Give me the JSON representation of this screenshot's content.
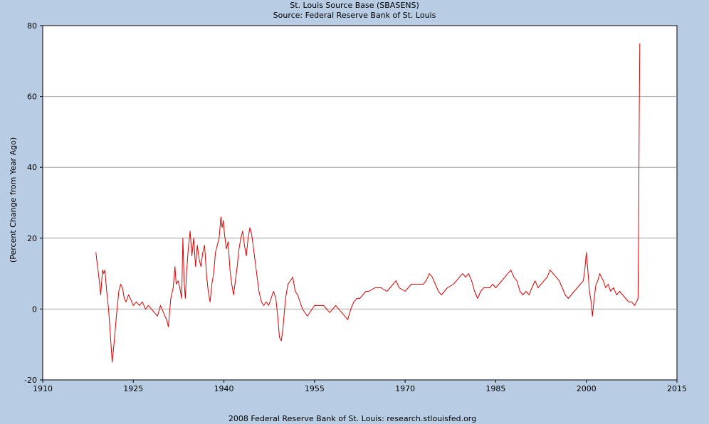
{
  "chart_data": {
    "type": "line",
    "title": "St. Louis Source Base (SBASENS)",
    "subtitle": "Source: Federal Reserve Bank of St. Louis",
    "xlabel": "",
    "ylabel": "(Percent Change from Year Ago)",
    "footer": "2008 Federal Reserve Bank of St. Louis: research.stlouisfed.org",
    "xlim": [
      1910,
      2015
    ],
    "ylim": [
      -20,
      80
    ],
    "x_ticks": [
      1910,
      1925,
      1940,
      1955,
      1970,
      1985,
      2000,
      2015
    ],
    "y_ticks": [
      -20,
      0,
      20,
      40,
      60,
      80
    ],
    "grid": "horizontal",
    "series": [
      {
        "color": "#e00000",
        "points": [
          [
            1918.8,
            16
          ],
          [
            1919.0,
            13
          ],
          [
            1919.3,
            9
          ],
          [
            1919.6,
            4
          ],
          [
            1919.9,
            11
          ],
          [
            1920.1,
            10
          ],
          [
            1920.3,
            11
          ],
          [
            1920.6,
            5
          ],
          [
            1920.9,
            0
          ],
          [
            1921.2,
            -7
          ],
          [
            1921.5,
            -15
          ],
          [
            1921.8,
            -10
          ],
          [
            1922.2,
            -2
          ],
          [
            1922.6,
            5
          ],
          [
            1922.9,
            7
          ],
          [
            1923.2,
            6
          ],
          [
            1923.5,
            3
          ],
          [
            1923.8,
            2
          ],
          [
            1924.2,
            4
          ],
          [
            1924.5,
            3
          ],
          [
            1925.0,
            1
          ],
          [
            1925.5,
            2
          ],
          [
            1926.0,
            1
          ],
          [
            1926.5,
            2
          ],
          [
            1927.0,
            0
          ],
          [
            1927.5,
            1
          ],
          [
            1928.0,
            0
          ],
          [
            1928.5,
            -1
          ],
          [
            1929.0,
            -2
          ],
          [
            1929.5,
            1
          ],
          [
            1930.0,
            -1
          ],
          [
            1930.5,
            -3
          ],
          [
            1930.8,
            -5
          ],
          [
            1931.2,
            3
          ],
          [
            1931.6,
            6
          ],
          [
            1931.9,
            12
          ],
          [
            1932.1,
            7
          ],
          [
            1932.4,
            8
          ],
          [
            1932.7,
            6
          ],
          [
            1933.0,
            3
          ],
          [
            1933.2,
            20
          ],
          [
            1933.4,
            8
          ],
          [
            1933.6,
            3
          ],
          [
            1933.8,
            10
          ],
          [
            1934.1,
            17
          ],
          [
            1934.4,
            22
          ],
          [
            1934.7,
            15
          ],
          [
            1935.0,
            20
          ],
          [
            1935.3,
            12
          ],
          [
            1935.6,
            18
          ],
          [
            1935.9,
            14
          ],
          [
            1936.2,
            12
          ],
          [
            1936.5,
            16
          ],
          [
            1936.8,
            18
          ],
          [
            1937.1,
            10
          ],
          [
            1937.4,
            5
          ],
          [
            1937.7,
            2
          ],
          [
            1938.0,
            7
          ],
          [
            1938.3,
            10
          ],
          [
            1938.6,
            16
          ],
          [
            1938.9,
            18
          ],
          [
            1939.2,
            20
          ],
          [
            1939.5,
            26
          ],
          [
            1939.7,
            23
          ],
          [
            1939.9,
            25
          ],
          [
            1940.1,
            21
          ],
          [
            1940.4,
            17
          ],
          [
            1940.7,
            19
          ],
          [
            1941.0,
            11
          ],
          [
            1941.3,
            7
          ],
          [
            1941.6,
            4
          ],
          [
            1941.9,
            8
          ],
          [
            1942.2,
            12
          ],
          [
            1942.5,
            17
          ],
          [
            1942.8,
            20
          ],
          [
            1943.1,
            22
          ],
          [
            1943.4,
            18
          ],
          [
            1943.7,
            15
          ],
          [
            1944.0,
            20
          ],
          [
            1944.3,
            23
          ],
          [
            1944.6,
            21
          ],
          [
            1944.9,
            17
          ],
          [
            1945.2,
            13
          ],
          [
            1945.5,
            9
          ],
          [
            1945.8,
            5
          ],
          [
            1946.2,
            2
          ],
          [
            1946.6,
            1
          ],
          [
            1947.0,
            2
          ],
          [
            1947.4,
            1
          ],
          [
            1947.8,
            3
          ],
          [
            1948.2,
            5
          ],
          [
            1948.6,
            3
          ],
          [
            1948.9,
            -2
          ],
          [
            1949.2,
            -8
          ],
          [
            1949.5,
            -9
          ],
          [
            1949.8,
            -5
          ],
          [
            1950.2,
            3
          ],
          [
            1950.6,
            7
          ],
          [
            1951.0,
            8
          ],
          [
            1951.4,
            9
          ],
          [
            1951.8,
            5
          ],
          [
            1952.2,
            4
          ],
          [
            1952.6,
            2
          ],
          [
            1953.0,
            0
          ],
          [
            1953.4,
            -1
          ],
          [
            1953.8,
            -2
          ],
          [
            1954.2,
            -1
          ],
          [
            1954.6,
            0
          ],
          [
            1955.0,
            1
          ],
          [
            1955.5,
            1
          ],
          [
            1956.0,
            1
          ],
          [
            1956.5,
            1
          ],
          [
            1957.0,
            0
          ],
          [
            1957.5,
            -1
          ],
          [
            1958.0,
            0
          ],
          [
            1958.5,
            1
          ],
          [
            1959.0,
            0
          ],
          [
            1959.5,
            -1
          ],
          [
            1960.0,
            -2
          ],
          [
            1960.5,
            -3
          ],
          [
            1961.0,
            0
          ],
          [
            1961.5,
            2
          ],
          [
            1962.0,
            3
          ],
          [
            1962.5,
            3
          ],
          [
            1963.0,
            4
          ],
          [
            1963.5,
            5
          ],
          [
            1964.0,
            5
          ],
          [
            1965.0,
            6
          ],
          [
            1966.0,
            6
          ],
          [
            1967.0,
            5
          ],
          [
            1968.0,
            7
          ],
          [
            1968.5,
            8
          ],
          [
            1969.0,
            6
          ],
          [
            1970.0,
            5
          ],
          [
            1970.5,
            6
          ],
          [
            1971.0,
            7
          ],
          [
            1972.0,
            7
          ],
          [
            1973.0,
            7
          ],
          [
            1973.5,
            8
          ],
          [
            1974.0,
            10
          ],
          [
            1974.5,
            9
          ],
          [
            1975.0,
            7
          ],
          [
            1975.5,
            5
          ],
          [
            1976.0,
            4
          ],
          [
            1977.0,
            6
          ],
          [
            1978.0,
            7
          ],
          [
            1978.5,
            8
          ],
          [
            1979.0,
            9
          ],
          [
            1979.5,
            10
          ],
          [
            1980.0,
            9
          ],
          [
            1980.5,
            10
          ],
          [
            1981.0,
            8
          ],
          [
            1981.5,
            5
          ],
          [
            1982.0,
            3
          ],
          [
            1982.5,
            5
          ],
          [
            1983.0,
            6
          ],
          [
            1984.0,
            6
          ],
          [
            1984.5,
            7
          ],
          [
            1985.0,
            6
          ],
          [
            1985.5,
            7
          ],
          [
            1986.0,
            8
          ],
          [
            1986.5,
            9
          ],
          [
            1987.0,
            10
          ],
          [
            1987.5,
            11
          ],
          [
            1988.0,
            9
          ],
          [
            1988.5,
            8
          ],
          [
            1989.0,
            5
          ],
          [
            1989.5,
            4
          ],
          [
            1990.0,
            5
          ],
          [
            1990.5,
            4
          ],
          [
            1991.0,
            6
          ],
          [
            1991.5,
            8
          ],
          [
            1992.0,
            6
          ],
          [
            1992.5,
            7
          ],
          [
            1993.0,
            8
          ],
          [
            1993.5,
            9
          ],
          [
            1994.0,
            11
          ],
          [
            1994.5,
            10
          ],
          [
            1995.0,
            9
          ],
          [
            1995.5,
            8
          ],
          [
            1996.0,
            6
          ],
          [
            1996.5,
            4
          ],
          [
            1997.0,
            3
          ],
          [
            1997.5,
            4
          ],
          [
            1998.0,
            5
          ],
          [
            1998.5,
            6
          ],
          [
            1999.0,
            7
          ],
          [
            1999.5,
            8
          ],
          [
            1999.8,
            12
          ],
          [
            2000.0,
            16
          ],
          [
            2000.2,
            12
          ],
          [
            2000.5,
            5
          ],
          [
            2000.8,
            2
          ],
          [
            2001.0,
            -2
          ],
          [
            2001.3,
            3
          ],
          [
            2001.6,
            7
          ],
          [
            2001.9,
            8
          ],
          [
            2002.2,
            10
          ],
          [
            2002.5,
            9
          ],
          [
            2002.8,
            8
          ],
          [
            2003.2,
            6
          ],
          [
            2003.6,
            7
          ],
          [
            2004.0,
            5
          ],
          [
            2004.5,
            6
          ],
          [
            2005.0,
            4
          ],
          [
            2005.5,
            5
          ],
          [
            2006.0,
            4
          ],
          [
            2006.5,
            3
          ],
          [
            2007.0,
            2
          ],
          [
            2007.5,
            2
          ],
          [
            2008.0,
            1
          ],
          [
            2008.3,
            2
          ],
          [
            2008.55,
            3
          ],
          [
            2008.65,
            22
          ],
          [
            2008.75,
            55
          ],
          [
            2008.85,
            75
          ]
        ]
      }
    ]
  }
}
